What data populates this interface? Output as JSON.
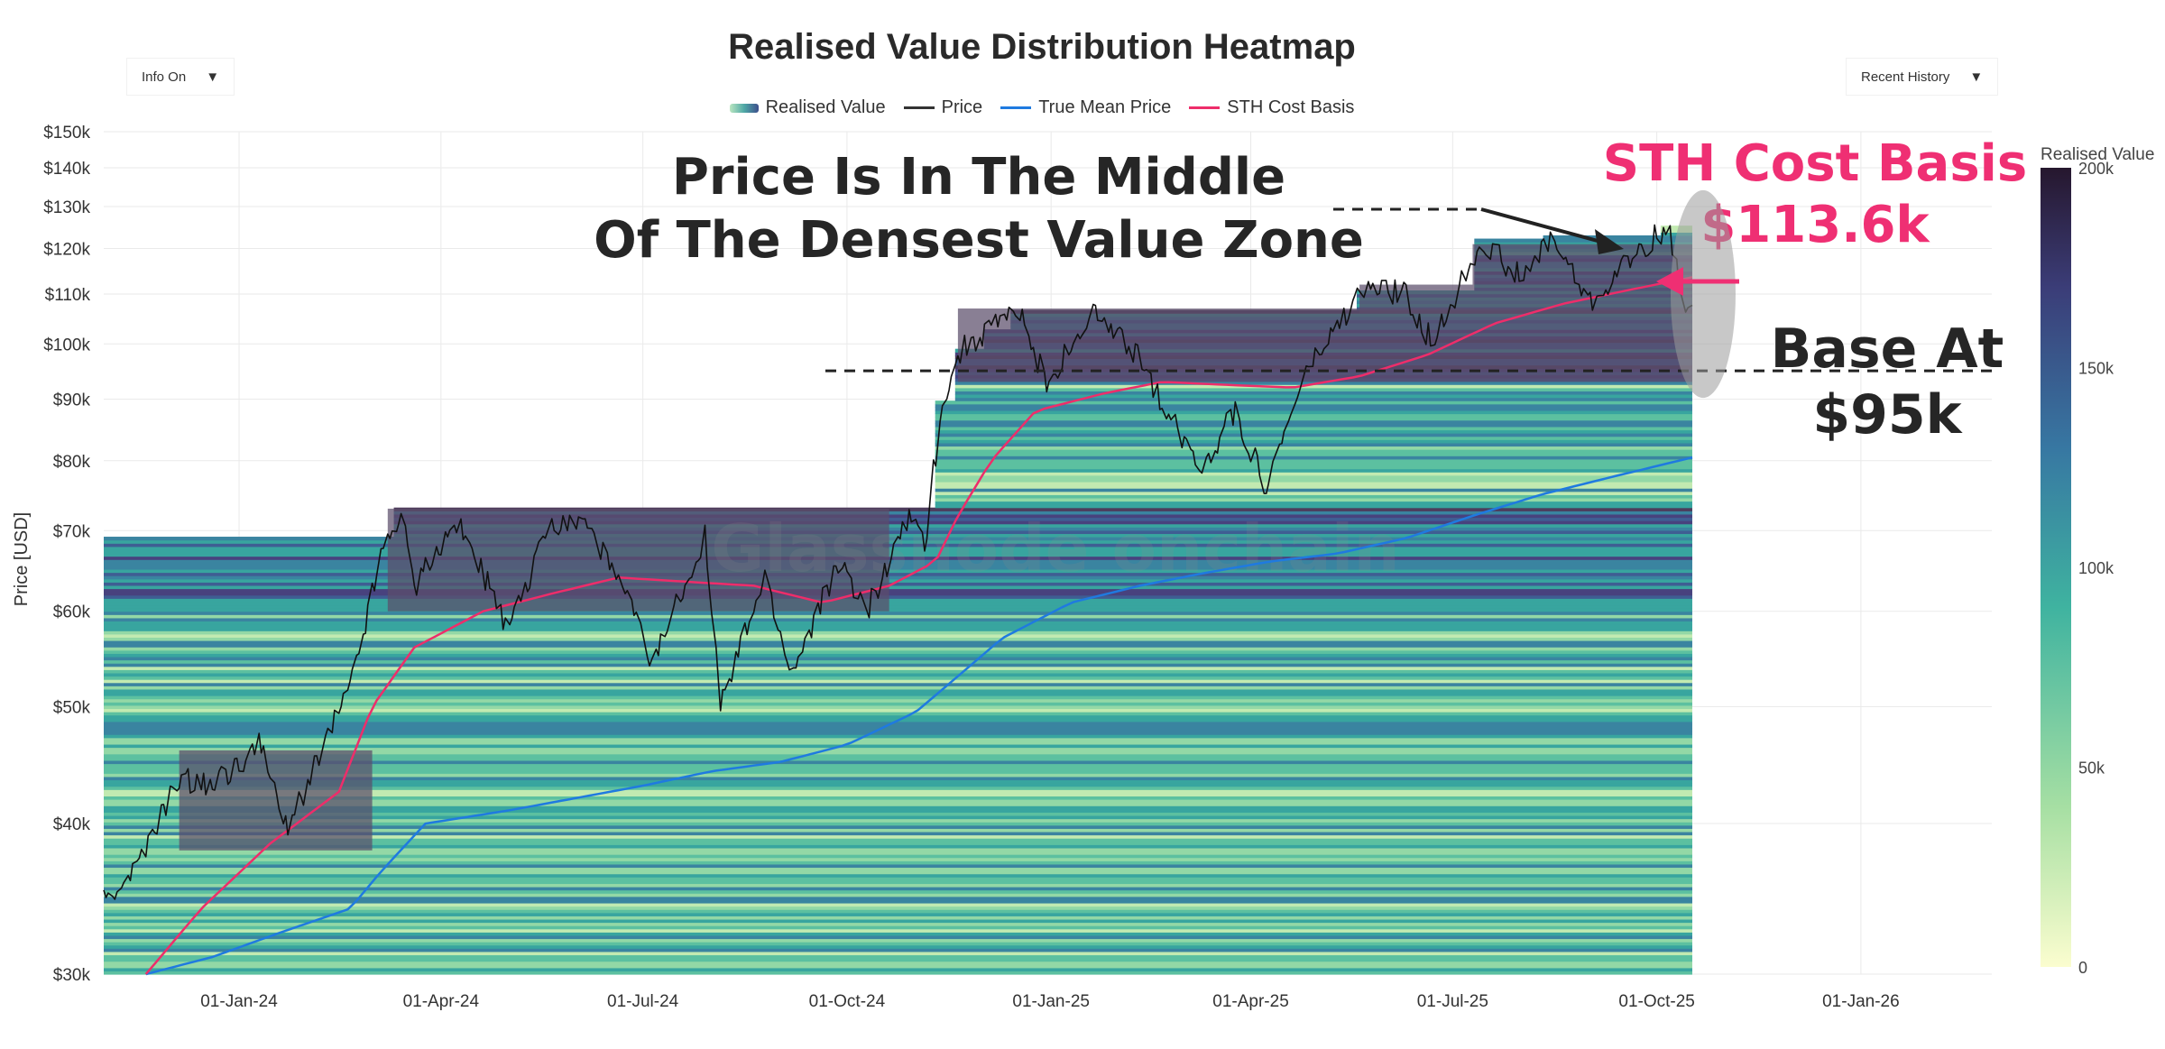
{
  "chart_data": {
    "type": "heatmap",
    "title": "Realised Value Distribution Heatmap",
    "controls": {
      "left": "Info On",
      "right": "Recent History"
    },
    "legend": [
      {
        "name": "Realised Value",
        "kind": "heatmap"
      },
      {
        "name": "Price",
        "color": "#333333"
      },
      {
        "name": "True Mean Price",
        "color": "#1f7ae0"
      },
      {
        "name": "STH Cost Basis",
        "color": "#ee2d6a"
      }
    ],
    "ylabel": "Price [USD]",
    "yscale": "log",
    "ylim": [
      30000,
      150000
    ],
    "ytick_values": [
      30000,
      40000,
      50000,
      60000,
      70000,
      80000,
      90000,
      100000,
      110000,
      120000,
      130000,
      140000,
      150000
    ],
    "ytick_labels": [
      "$30k",
      "$40k",
      "$50k",
      "$60k",
      "$70k",
      "$80k",
      "$90k",
      "$100k",
      "$110k",
      "$120k",
      "$130k",
      "$140k",
      "$150k"
    ],
    "xlim": [
      "2023-11-01",
      "2026-03-01"
    ],
    "xtick_dates": [
      "2024-01-01",
      "2024-04-01",
      "2024-07-01",
      "2024-10-01",
      "2025-01-01",
      "2025-04-01",
      "2025-07-01",
      "2025-10-01",
      "2026-01-01"
    ],
    "xtick_labels": [
      "01-Jan-24",
      "01-Apr-24",
      "01-Jul-24",
      "01-Oct-24",
      "01-Jan-25",
      "01-Apr-25",
      "01-Jul-25",
      "01-Oct-25",
      "01-Jan-26"
    ],
    "colorbar": {
      "title": "Realised Value",
      "range": [
        0,
        200000
      ],
      "tick_labels": [
        "0",
        "50k",
        "100k",
        "150k",
        "200k"
      ]
    },
    "series": [
      {
        "name": "Price",
        "points": [
          [
            "2023-11-01",
            34500
          ],
          [
            "2023-11-15",
            36500
          ],
          [
            "2023-12-05",
            43500
          ],
          [
            "2023-12-20",
            43000
          ],
          [
            "2024-01-10",
            46500
          ],
          [
            "2024-01-23",
            39500
          ],
          [
            "2024-02-10",
            47500
          ],
          [
            "2024-02-20",
            52000
          ],
          [
            "2024-02-28",
            60000
          ],
          [
            "2024-03-05",
            67000
          ],
          [
            "2024-03-14",
            73000
          ],
          [
            "2024-03-20",
            63000
          ],
          [
            "2024-04-08",
            71500
          ],
          [
            "2024-04-20",
            64500
          ],
          [
            "2024-05-01",
            57500
          ],
          [
            "2024-05-20",
            71000
          ],
          [
            "2024-06-05",
            71500
          ],
          [
            "2024-06-25",
            61000
          ],
          [
            "2024-07-05",
            54000
          ],
          [
            "2024-07-29",
            69500
          ],
          [
            "2024-08-05",
            50000
          ],
          [
            "2024-08-25",
            64000
          ],
          [
            "2024-09-06",
            53000
          ],
          [
            "2024-09-27",
            66000
          ],
          [
            "2024-10-10",
            60000
          ],
          [
            "2024-10-29",
            72500
          ],
          [
            "2024-11-05",
            68000
          ],
          [
            "2024-11-13",
            90000
          ],
          [
            "2024-11-22",
            99000
          ],
          [
            "2024-12-05",
            103000
          ],
          [
            "2024-12-17",
            107000
          ],
          [
            "2024-12-30",
            93000
          ],
          [
            "2025-01-20",
            106000
          ],
          [
            "2025-02-10",
            97000
          ],
          [
            "2025-02-25",
            86000
          ],
          [
            "2025-03-10",
            79000
          ],
          [
            "2025-03-25",
            88000
          ],
          [
            "2025-04-08",
            76000
          ],
          [
            "2025-04-25",
            94000
          ],
          [
            "2025-05-22",
            111000
          ],
          [
            "2025-06-10",
            110000
          ],
          [
            "2025-06-22",
            100000
          ],
          [
            "2025-07-14",
            122000
          ],
          [
            "2025-08-02",
            113000
          ],
          [
            "2025-08-14",
            123000
          ],
          [
            "2025-09-01",
            108000
          ],
          [
            "2025-09-18",
            117000
          ],
          [
            "2025-10-06",
            125500
          ],
          [
            "2025-10-12",
            110000
          ],
          [
            "2025-10-17",
            107000
          ]
        ]
      },
      {
        "name": "STH Cost Basis",
        "points": [
          [
            "2023-11-20",
            30000
          ],
          [
            "2023-12-15",
            34000
          ],
          [
            "2024-01-15",
            38500
          ],
          [
            "2024-02-15",
            42500
          ],
          [
            "2024-03-01",
            50000
          ],
          [
            "2024-03-20",
            56000
          ],
          [
            "2024-04-20",
            60000
          ],
          [
            "2024-05-20",
            62000
          ],
          [
            "2024-06-20",
            64000
          ],
          [
            "2024-07-20",
            63500
          ],
          [
            "2024-08-20",
            63000
          ],
          [
            "2024-09-20",
            61000
          ],
          [
            "2024-10-20",
            63000
          ],
          [
            "2024-11-10",
            66000
          ],
          [
            "2024-11-20",
            72000
          ],
          [
            "2024-12-05",
            80000
          ],
          [
            "2024-12-25",
            88000
          ],
          [
            "2025-01-25",
            91000
          ],
          [
            "2025-02-20",
            93000
          ],
          [
            "2025-03-20",
            92500
          ],
          [
            "2025-04-20",
            92000
          ],
          [
            "2025-05-20",
            94000
          ],
          [
            "2025-06-20",
            98000
          ],
          [
            "2025-07-20",
            104000
          ],
          [
            "2025-08-20",
            108000
          ],
          [
            "2025-09-20",
            111000
          ],
          [
            "2025-10-17",
            113600
          ]
        ]
      },
      {
        "name": "True Mean Price",
        "points": [
          [
            "2023-11-20",
            30000
          ],
          [
            "2023-12-20",
            31000
          ],
          [
            "2024-01-20",
            32500
          ],
          [
            "2024-02-20",
            34000
          ],
          [
            "2024-03-05",
            36500
          ],
          [
            "2024-03-25",
            40000
          ],
          [
            "2024-05-01",
            41000
          ],
          [
            "2024-06-01",
            42000
          ],
          [
            "2024-07-01",
            43000
          ],
          [
            "2024-08-01",
            44200
          ],
          [
            "2024-09-01",
            45000
          ],
          [
            "2024-10-01",
            46500
          ],
          [
            "2024-11-01",
            49500
          ],
          [
            "2024-11-20",
            53000
          ],
          [
            "2024-12-10",
            57000
          ],
          [
            "2025-01-10",
            61000
          ],
          [
            "2025-02-10",
            63000
          ],
          [
            "2025-03-10",
            64500
          ],
          [
            "2025-04-10",
            66000
          ],
          [
            "2025-05-10",
            67000
          ],
          [
            "2025-06-10",
            69000
          ],
          [
            "2025-07-10",
            72000
          ],
          [
            "2025-08-10",
            75000
          ],
          [
            "2025-09-10",
            77500
          ],
          [
            "2025-10-17",
            80500
          ]
        ]
      }
    ],
    "annotations": {
      "headline_1": "Price Is In The Middle",
      "headline_2": "Of The Densest Value Zone",
      "sth_label": "STH Cost Basis",
      "sth_value": "$113.6k",
      "sth_value_num": 113600,
      "base_label_1": "Base At",
      "base_label_2": "$95k",
      "base_value_num": 95000,
      "watermark": "Glassnode onchain"
    }
  },
  "colors": {
    "price": "#111111",
    "sth": "#ee2d6a",
    "true_mean": "#1f7ae0",
    "annotation_pink": "#ef2f73",
    "annotation_dark": "#262626"
  }
}
